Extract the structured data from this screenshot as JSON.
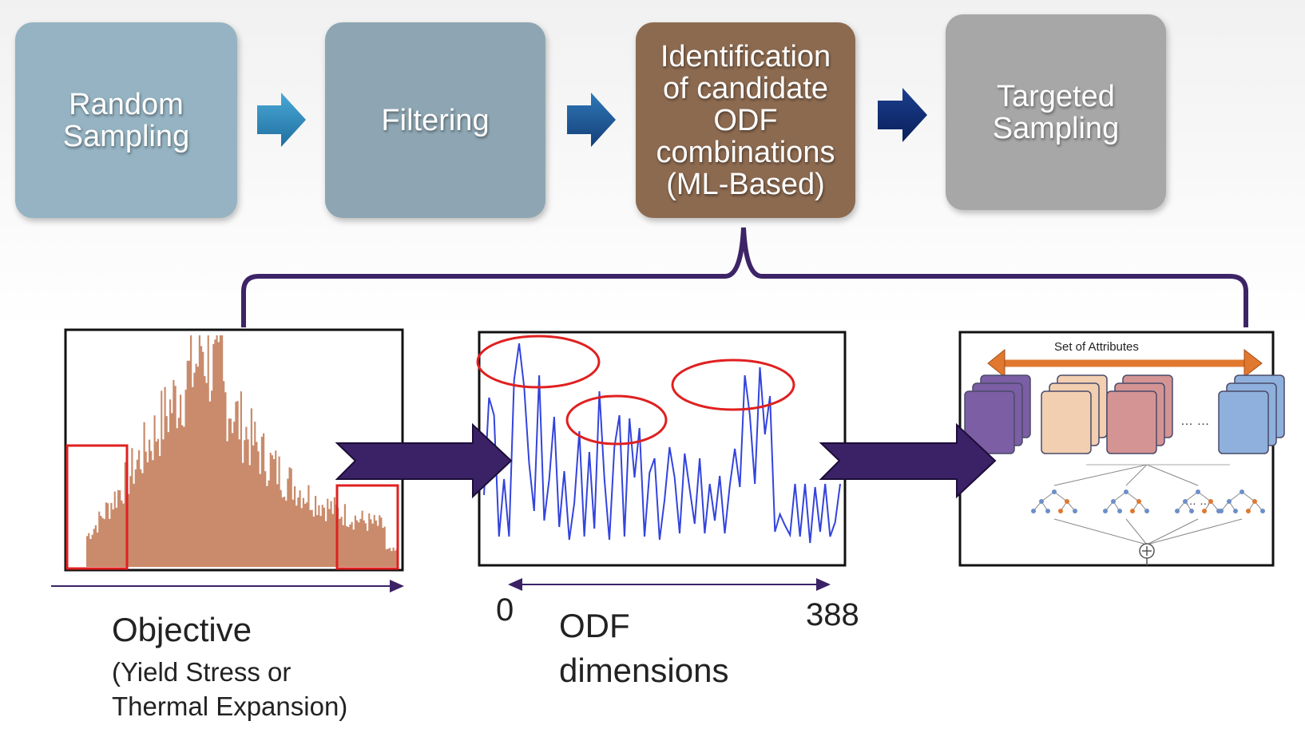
{
  "pipeline": {
    "steps": [
      {
        "label": "Random\nSampling",
        "color": "#95b3c2"
      },
      {
        "label": "Filtering",
        "color": "#8ea6b3"
      },
      {
        "label": "Identification\nof candidate\nODF\ncombinations\n(ML-Based)",
        "color": "#8c6a50"
      },
      {
        "label": "Targeted\nSampling",
        "color": "#a7a7a7"
      }
    ],
    "arrow_colors": [
      "#2f8fbf",
      "#1f5f99",
      "#0f2f70"
    ]
  },
  "bracket_color": "#3d2466",
  "histogram": {
    "bar_color": "#c98b6c",
    "highlight_color": "#e02020",
    "axis_label": "Objective",
    "axis_sublabel": "(Yield Stress or\nThermal Expansion)"
  },
  "odf_plot": {
    "line_color": "#3344dd",
    "circle_color": "#e02020",
    "range_start": "0",
    "range_end": "388",
    "axis_label": "ODF\ndimensions"
  },
  "model": {
    "attributes_label": "Set of Attributes",
    "ellipsis": "… …",
    "arrow_color": "#e07830",
    "cube_colors": [
      "#7b5ea3",
      "#f2cfb0",
      "#d49494",
      "#8fb0dc"
    ]
  },
  "flow_arrow_color": "#3b2266"
}
